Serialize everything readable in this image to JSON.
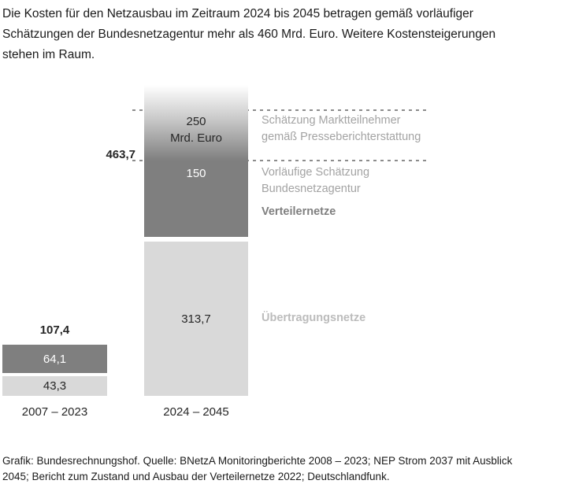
{
  "chart_data": {
    "type": "bar",
    "stacked": true,
    "unit": "Mrd. Euro",
    "title": "Die Kosten für den Netzausbau im Zeitraum 2024 bis 2045 betragen gemäß vorläufiger Schätzungen der Bundesnetzagentur mehr als 460 Mrd. Euro. Weitere Kostensteigerungen stehen im Raum.",
    "categories": [
      "2007 – 2023",
      "2024 – 2045"
    ],
    "series": [
      {
        "name": "Übertragungsnetze",
        "values": [
          43.3,
          313.7
        ]
      },
      {
        "name": "Verteilernetze – Vorläufige Schätzung Bundesnetzagentur",
        "values": [
          64.1,
          150
        ]
      },
      {
        "name": "Verteilernetze – Schätzung Marktteilnehmer gemäß Presseberichterstattung",
        "values": [
          null,
          250
        ]
      }
    ],
    "totals": [
      107.4,
      463.7
    ],
    "grid": false,
    "legend_position": "right",
    "source": "Grafik: Bundesrechnungshof. Quelle: BNetzA Monitoringberichte 2008 – 2023; NEP Strom 2037 mit Ausblick 2045; Bericht zum Zustand und Ausbau der Verteilernetze 2022; Deutschlandfunk."
  },
  "header": {
    "title": "Die Kosten für den Netzausbau im Zeitraum 2024 bis 2045 betragen gemäß vorläufiger\nSchätzungen der Bundesnetzagentur mehr als 460 Mrd. Euro. Weitere Kostensteigerungen\nstehen im Raum."
  },
  "left_bar": {
    "total": "107,4",
    "dark_value": "64,1",
    "light_value": "43,3",
    "axis_label": "2007 – 2023"
  },
  "right_bar": {
    "total": "463,7",
    "gradient_value": "250",
    "gradient_unit": "Mrd. Euro",
    "dark_value": "150",
    "light_value": "313,7",
    "axis_label": "2024 – 2045"
  },
  "annotations": {
    "market_line1": "Schätzung Marktteilnehmer",
    "market_line2": "gemäß Presseberichterstattung",
    "bnetza_line1": "Vorläufige Schätzung",
    "bnetza_line2": "Bundesnetzagentur",
    "distribution": "Verteilernetze",
    "transmission": "Übertragungsnetze"
  },
  "footer": {
    "source": "Grafik: Bundesrechnungshof. Quelle: BNetzA Monitoringberichte 2008 – 2023; NEP Strom 2037 mit Ausblick\n2045; Bericht zum Zustand und Ausbau der Verteilernetze 2022; Deutschlandfunk."
  },
  "colors": {
    "dark_segment": "#7f7f7f",
    "light_segment": "#d9d9d9",
    "annotation_text": "#a3a3a3",
    "distribution_label": "#7f7f7f",
    "transmission_label": "#bcbcbc",
    "dashed_line": "#8c8c8c",
    "text_dark": "#1a1a1a"
  }
}
